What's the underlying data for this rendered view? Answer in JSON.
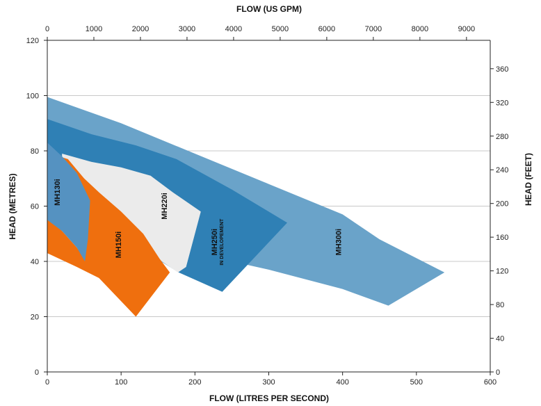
{
  "chart_data": {
    "type": "area",
    "title": "",
    "axes": {
      "bottom": {
        "label": "FLOW (LITRES PER SECOND)",
        "min": 0,
        "max": 600,
        "ticks": [
          0,
          100,
          200,
          300,
          400,
          500,
          600
        ]
      },
      "top": {
        "label": "FLOW (US GPM)",
        "min": 0,
        "max": 9510,
        "ticks": [
          0,
          1000,
          2000,
          3000,
          4000,
          5000,
          6000,
          7000,
          8000,
          9000
        ]
      },
      "left": {
        "label": "HEAD  (METRES)",
        "min": 0,
        "max": 120,
        "ticks": [
          0,
          20,
          40,
          60,
          80,
          100,
          120
        ]
      },
      "right": {
        "label": "HEAD  (FEET)",
        "min": 0,
        "max": 393.7,
        "ticks": [
          0,
          40,
          80,
          120,
          160,
          200,
          240,
          280,
          320,
          360
        ]
      }
    },
    "grid": true,
    "regions": [
      {
        "label": "MH300i",
        "sublabel": "",
        "color": "#6aa3c9",
        "polygon": [
          [
            0,
            99.5
          ],
          [
            100,
            90
          ],
          [
            200,
            79
          ],
          [
            300,
            68
          ],
          [
            400,
            57
          ],
          [
            450,
            48
          ],
          [
            538,
            36
          ],
          [
            462,
            24
          ],
          [
            400,
            30
          ],
          [
            300,
            37
          ],
          [
            200,
            43
          ],
          [
            150,
            48
          ],
          [
            100,
            54
          ],
          [
            50,
            60
          ],
          [
            0,
            64
          ]
        ],
        "label_at": [
          398,
          47
        ]
      },
      {
        "label": "MH250i",
        "sublabel": "IN DEVELOPEMENT",
        "color": "#2f80b5",
        "polygon": [
          [
            0,
            91.5
          ],
          [
            60,
            86
          ],
          [
            120,
            82
          ],
          [
            175,
            77
          ],
          [
            250,
            66
          ],
          [
            325,
            54
          ],
          [
            237,
            29
          ],
          [
            178,
            36
          ],
          [
            130,
            44
          ],
          [
            90,
            52
          ],
          [
            45,
            60
          ],
          [
            0,
            63
          ]
        ],
        "label_at": [
          230,
          47
        ]
      },
      {
        "label": "MH220i",
        "sublabel": "",
        "color": "#ebebeb",
        "polygon": [
          [
            20,
            79
          ],
          [
            60,
            76
          ],
          [
            100,
            74
          ],
          [
            140,
            71
          ],
          [
            170,
            65
          ],
          [
            208,
            58
          ],
          [
            188,
            38
          ],
          [
            177,
            36
          ],
          [
            155,
            40
          ],
          [
            120,
            49
          ],
          [
            80,
            56
          ],
          [
            45,
            65
          ],
          [
            20,
            75
          ]
        ],
        "label_at": [
          162,
          60
        ]
      },
      {
        "label": "MH150i",
        "sublabel": "",
        "color": "#ef6f0e",
        "polygon": [
          [
            10,
            78.5
          ],
          [
            28,
            77
          ],
          [
            50,
            70
          ],
          [
            70,
            65
          ],
          [
            100,
            58
          ],
          [
            130,
            50
          ],
          [
            152,
            41
          ],
          [
            166,
            36
          ],
          [
            120,
            20
          ],
          [
            70,
            34
          ],
          [
            40,
            38
          ],
          [
            0,
            43
          ],
          [
            0,
            56
          ],
          [
            20,
            51
          ],
          [
            40,
            45
          ],
          [
            50,
            41
          ]
        ],
        "label_at": [
          100,
          46
        ]
      },
      {
        "label": "MH130i",
        "sublabel": "",
        "color": "#5592c1",
        "polygon": [
          [
            0,
            83
          ],
          [
            20,
            78
          ],
          [
            40,
            72
          ],
          [
            58,
            62
          ],
          [
            55,
            48
          ],
          [
            51,
            40
          ],
          [
            40,
            45
          ],
          [
            20,
            51
          ],
          [
            0,
            55
          ]
        ],
        "label_at": [
          17,
          65
        ]
      }
    ]
  }
}
